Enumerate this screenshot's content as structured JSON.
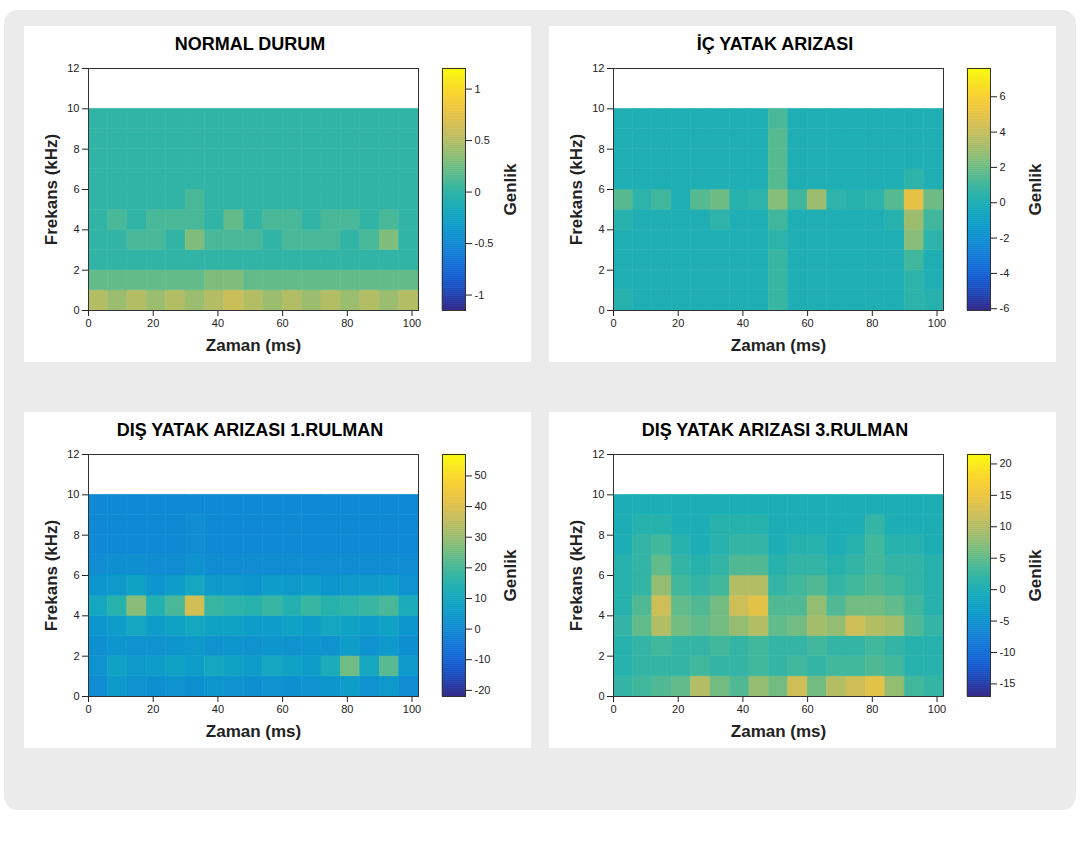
{
  "chart_data": [
    {
      "type": "heatmap",
      "title": "NORMAL DURUM",
      "x_label": "Zaman (ms)",
      "y_label": "Frekans (kHz)",
      "xlim": [
        0,
        102
      ],
      "xticks": [
        0,
        20,
        40,
        60,
        80,
        100
      ],
      "ylim": [
        0,
        12
      ],
      "yticks": [
        0,
        2,
        4,
        6,
        8,
        10,
        12
      ],
      "x_edges": [
        0,
        6,
        12,
        18,
        24,
        30,
        36,
        42,
        48,
        54,
        60,
        66,
        72,
        78,
        84,
        90,
        96,
        102
      ],
      "y_edges": [
        0,
        1,
        2,
        3,
        4,
        5,
        6,
        7,
        8,
        9,
        10
      ],
      "cells": [
        [
          0.5,
          0.4,
          0.5,
          0.4,
          0.5,
          0.4,
          0.5,
          0.6,
          0.5,
          0.4,
          0.5,
          0.4,
          0.5,
          0.4,
          0.5,
          0.4,
          0.5
        ],
        [
          0.2,
          0.2,
          0.2,
          0.2,
          0.2,
          0.2,
          0.3,
          0.3,
          0.2,
          0.2,
          0.2,
          0.2,
          0.2,
          0.2,
          0.2,
          0.2,
          0.2
        ],
        [
          0,
          0,
          0,
          0,
          0,
          0,
          0,
          0,
          0,
          0,
          0,
          0,
          0,
          0,
          0,
          0,
          0
        ],
        [
          0,
          0,
          0.1,
          0.1,
          0,
          0.3,
          0.1,
          0.1,
          0.1,
          0,
          0.1,
          0.1,
          0.1,
          0,
          0.1,
          0.3,
          0
        ],
        [
          0,
          0.1,
          0,
          0.1,
          0.1,
          0.1,
          0,
          0.2,
          0,
          0.1,
          0.1,
          0,
          0.1,
          0.1,
          0,
          0.1,
          0
        ],
        [
          0,
          0,
          0,
          0,
          0,
          0.1,
          0,
          0,
          0,
          0,
          0,
          0,
          0,
          0,
          0,
          0,
          0
        ],
        [
          0,
          0,
          0,
          0,
          0,
          0,
          0,
          0,
          0,
          0,
          0,
          0,
          0,
          0,
          0,
          0,
          0
        ],
        [
          0,
          0,
          0,
          0,
          0,
          0,
          0,
          0,
          0,
          0,
          0,
          0,
          0,
          0,
          0,
          0,
          0
        ],
        [
          0,
          0,
          0,
          0,
          0,
          0,
          0,
          0,
          0,
          0,
          0,
          0,
          0,
          0,
          0,
          0,
          0
        ],
        [
          0,
          0,
          0,
          0,
          0,
          0,
          0,
          0,
          0,
          0,
          0,
          0,
          0,
          0,
          0,
          0,
          0
        ]
      ],
      "colorbar_label": "Genlik",
      "colorbar_lim": [
        -1.15,
        1.2
      ],
      "colorbar_ticks": [
        -1,
        -0.5,
        0,
        0.5,
        1
      ]
    },
    {
      "type": "heatmap",
      "title": "İÇ YATAK ARIZASI",
      "x_label": "Zaman (ms)",
      "y_label": "Frekans (kHz)",
      "xlim": [
        0,
        102
      ],
      "xticks": [
        0,
        20,
        40,
        60,
        80,
        100
      ],
      "ylim": [
        0,
        12
      ],
      "yticks": [
        0,
        2,
        4,
        6,
        8,
        10,
        12
      ],
      "x_edges": [
        0,
        6,
        12,
        18,
        24,
        30,
        36,
        42,
        48,
        54,
        60,
        66,
        72,
        78,
        84,
        90,
        96,
        102
      ],
      "y_edges": [
        0,
        1,
        2,
        3,
        4,
        5,
        6,
        7,
        8,
        9,
        10
      ],
      "cells": [
        [
          0.3,
          0,
          0,
          0,
          0,
          0,
          0,
          0,
          0.8,
          0,
          0,
          0,
          0,
          0,
          0,
          0.5,
          0.3
        ],
        [
          0,
          0,
          0,
          0,
          0,
          0,
          0,
          0,
          0.8,
          0,
          0,
          0,
          0,
          0,
          0,
          0.5,
          0
        ],
        [
          0,
          0,
          0,
          0,
          0,
          0,
          0,
          0,
          0.8,
          0,
          0,
          0,
          0,
          0,
          0,
          1,
          0
        ],
        [
          0,
          0,
          0,
          0,
          0,
          0,
          0,
          0,
          0.5,
          0,
          0,
          0,
          0,
          0,
          0,
          2.5,
          0.5
        ],
        [
          0.3,
          0,
          0,
          0,
          0,
          0.5,
          0,
          0,
          1,
          0,
          0,
          0,
          0,
          0,
          0.3,
          3,
          1
        ],
        [
          1.5,
          0.5,
          1,
          0,
          1.5,
          2,
          0.3,
          0.5,
          2.5,
          1,
          3,
          0.5,
          0.3,
          0.5,
          1.5,
          5,
          2
        ],
        [
          0,
          0,
          0,
          0,
          0,
          0,
          0,
          0,
          1.5,
          0,
          0,
          0,
          0,
          0,
          0,
          0.5,
          0
        ],
        [
          0,
          0,
          0,
          0,
          0,
          0,
          0,
          0,
          1.5,
          0,
          0,
          0,
          0,
          0,
          0,
          0,
          0
        ],
        [
          0,
          0,
          0,
          0,
          0,
          0,
          0,
          0,
          1.5,
          0,
          0,
          0,
          0,
          0,
          0,
          0,
          0
        ],
        [
          0,
          0,
          0,
          0,
          0,
          0,
          0,
          0,
          1.2,
          0,
          0,
          0,
          0,
          0,
          0,
          0,
          0
        ]
      ],
      "colorbar_label": "Genlik",
      "colorbar_lim": [
        -6.1,
        7.6
      ],
      "colorbar_ticks": [
        -6,
        -4,
        -2,
        0,
        2,
        4,
        6
      ]
    },
    {
      "type": "heatmap",
      "title": "DIŞ YATAK ARIZASI 1.RULMAN",
      "x_label": "Zaman (ms)",
      "y_label": "Frekans (kHz)",
      "xlim": [
        0,
        102
      ],
      "xticks": [
        0,
        20,
        40,
        60,
        80,
        100
      ],
      "ylim": [
        0,
        12
      ],
      "yticks": [
        0,
        2,
        4,
        6,
        8,
        10,
        12
      ],
      "x_edges": [
        0,
        6,
        12,
        18,
        24,
        30,
        36,
        42,
        48,
        54,
        60,
        66,
        72,
        78,
        84,
        90,
        96,
        102
      ],
      "y_edges": [
        0,
        1,
        2,
        3,
        4,
        5,
        6,
        7,
        8,
        9,
        10
      ],
      "cells": [
        [
          1,
          5,
          3,
          2,
          3,
          2,
          4,
          3,
          2,
          3,
          2,
          3,
          4,
          6,
          3,
          5,
          1
        ],
        [
          3,
          8,
          5,
          6,
          8,
          6,
          10,
          8,
          6,
          10,
          8,
          6,
          12,
          25,
          10,
          22,
          5
        ],
        [
          2,
          4,
          3,
          3,
          4,
          5,
          3,
          4,
          3,
          4,
          3,
          4,
          3,
          6,
          3,
          5,
          2
        ],
        [
          4,
          6,
          10,
          6,
          8,
          10,
          8,
          8,
          6,
          6,
          8,
          6,
          10,
          8,
          6,
          8,
          4
        ],
        [
          10,
          15,
          28,
          14,
          20,
          38,
          18,
          16,
          15,
          18,
          14,
          18,
          15,
          16,
          18,
          20,
          12
        ],
        [
          4,
          5,
          8,
          4,
          6,
          10,
          5,
          5,
          4,
          6,
          5,
          6,
          4,
          5,
          5,
          6,
          3
        ],
        [
          1,
          2,
          2,
          1,
          1,
          3,
          1,
          1,
          1,
          1,
          1,
          1,
          1,
          1,
          1,
          1,
          1
        ],
        [
          0,
          0,
          0,
          0,
          0,
          1,
          0,
          0,
          0,
          0,
          0,
          0,
          0,
          0,
          0,
          0,
          0
        ],
        [
          0,
          0,
          0,
          0,
          0,
          1,
          0,
          0,
          0,
          0,
          0,
          0,
          0,
          0,
          0,
          0,
          0
        ],
        [
          0,
          0,
          0,
          0,
          0,
          0,
          0,
          0,
          0,
          0,
          0,
          0,
          0,
          0,
          0,
          0,
          0
        ]
      ],
      "colorbar_label": "Genlik",
      "colorbar_lim": [
        -22,
        57
      ],
      "colorbar_ticks": [
        -20,
        -10,
        0,
        10,
        20,
        30,
        40,
        50
      ]
    },
    {
      "type": "heatmap",
      "title": "DIŞ YATAK ARIZASI 3.RULMAN",
      "x_label": "Zaman (ms)",
      "y_label": "Frekans (kHz)",
      "xlim": [
        0,
        102
      ],
      "xticks": [
        0,
        20,
        40,
        60,
        80,
        100
      ],
      "ylim": [
        0,
        12
      ],
      "yticks": [
        0,
        2,
        4,
        6,
        8,
        10,
        12
      ],
      "x_edges": [
        0,
        6,
        12,
        18,
        24,
        30,
        36,
        42,
        48,
        54,
        60,
        66,
        72,
        78,
        84,
        90,
        96,
        102
      ],
      "y_edges": [
        0,
        1,
        2,
        3,
        4,
        5,
        6,
        7,
        8,
        9,
        10
      ],
      "cells": [
        [
          2,
          3,
          4,
          5,
          10,
          6,
          4,
          8,
          6,
          12,
          6,
          10,
          12,
          14,
          8,
          3,
          2
        ],
        [
          1,
          2,
          2,
          2,
          3,
          2,
          2,
          3,
          2,
          3,
          2,
          3,
          3,
          4,
          3,
          1,
          1
        ],
        [
          1,
          2,
          3,
          2,
          2,
          3,
          2,
          3,
          2,
          2,
          3,
          2,
          2,
          3,
          2,
          1,
          1
        ],
        [
          2,
          5,
          10,
          6,
          5,
          6,
          8,
          10,
          5,
          6,
          9,
          8,
          12,
          10,
          9,
          4,
          2
        ],
        [
          1,
          4,
          12,
          5,
          4,
          6,
          12,
          14,
          4,
          4,
          8,
          4,
          6,
          6,
          5,
          3,
          1
        ],
        [
          1,
          2,
          8,
          3,
          2,
          3,
          10,
          10,
          2,
          3,
          4,
          2,
          3,
          4,
          3,
          2,
          1
        ],
        [
          1,
          2,
          5,
          2,
          1,
          2,
          4,
          4,
          1,
          2,
          2,
          1,
          2,
          3,
          2,
          2,
          1
        ],
        [
          0,
          2,
          3,
          1,
          0,
          1,
          2,
          2,
          0,
          1,
          1,
          0,
          1,
          3,
          1,
          1,
          0
        ],
        [
          0,
          1,
          1,
          0,
          0,
          1,
          1,
          1,
          0,
          0,
          0,
          0,
          0,
          2,
          0,
          0,
          0
        ],
        [
          0,
          0,
          0,
          0,
          0,
          0,
          0,
          0,
          0,
          0,
          0,
          0,
          0,
          0,
          0,
          0,
          0
        ]
      ],
      "colorbar_label": "Genlik",
      "colorbar_lim": [
        -17,
        21.5
      ],
      "colorbar_ticks": [
        -15,
        -10,
        -5,
        0,
        5,
        10,
        15,
        20
      ]
    }
  ]
}
